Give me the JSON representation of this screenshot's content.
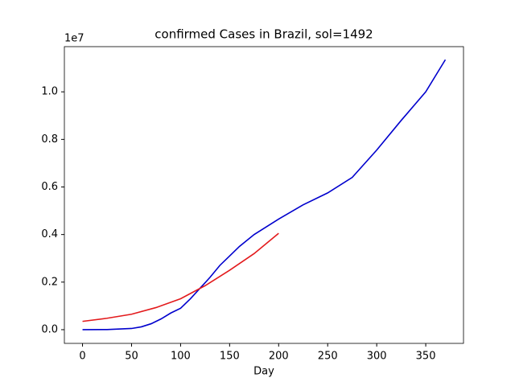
{
  "chart_data": {
    "type": "line",
    "title": "confirmed Cases in Brazil, sol=1492",
    "x_label": "Day",
    "y_offset_label": "1e7",
    "series": [
      {
        "color": "#0000cd",
        "x": [
          0,
          25,
          50,
          60,
          70,
          80,
          90,
          100,
          110,
          120,
          130,
          140,
          150,
          160,
          175,
          200,
          225,
          250,
          275,
          300,
          325,
          350,
          370
        ],
        "values": [
          0,
          0.0005,
          0.005,
          0.012,
          0.025,
          0.045,
          0.07,
          0.09,
          0.13,
          0.175,
          0.22,
          0.27,
          0.31,
          0.35,
          0.4,
          0.465,
          0.525,
          0.575,
          0.64,
          0.755,
          0.88,
          1.0,
          1.135
        ]
      },
      {
        "color": "#e31a1c",
        "x": [
          0,
          25,
          50,
          75,
          100,
          125,
          150,
          175,
          200
        ],
        "values": [
          0.035,
          0.048,
          0.065,
          0.093,
          0.13,
          0.185,
          0.25,
          0.32,
          0.405
        ]
      }
    ],
    "xlim": [
      -18.5,
      388.5
    ],
    "xticks": [
      0,
      50,
      100,
      150,
      200,
      250,
      300,
      350
    ],
    "ylim": [
      -0.0576,
      1.19
    ],
    "yticks": [
      {
        "value": 0,
        "label": "0.0"
      },
      0.2,
      0.4,
      0.6,
      0.8,
      {
        "value": 1,
        "label": "1.0"
      }
    ]
  }
}
